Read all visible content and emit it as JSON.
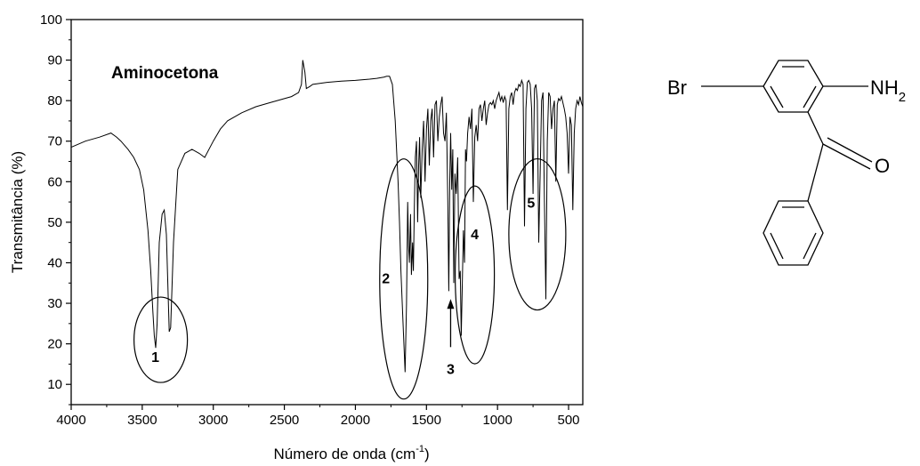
{
  "chart_data": {
    "type": "line",
    "title": "Aminocetona",
    "xlabel": "Número de onda (cm",
    "xlabel_sup": "-1",
    "xlabel_end": ")",
    "ylabel": "Transmitância (%)",
    "xlim": [
      4000,
      400
    ],
    "ylim": [
      5,
      100
    ],
    "x_ticks": [
      4000,
      3500,
      3000,
      2500,
      2000,
      1500,
      1000,
      500
    ],
    "x_tick_labels": [
      "4000",
      "3500",
      "3000",
      "2500",
      "2000",
      "1500",
      "1000",
      "500"
    ],
    "y_ticks": [
      10,
      20,
      30,
      40,
      50,
      60,
      70,
      80,
      90,
      100
    ],
    "y_tick_labels": [
      "10",
      "20",
      "30",
      "40",
      "50",
      "60",
      "70",
      "80",
      "90",
      "100"
    ],
    "grid": false,
    "series": [
      {
        "x": [
          4000,
          3900,
          3800,
          3720,
          3680,
          3650,
          3600,
          3560,
          3520,
          3490,
          3460,
          3440,
          3425,
          3415,
          3405,
          3395,
          3380,
          3360,
          3345,
          3330,
          3320,
          3310,
          3300,
          3280,
          3250,
          3200,
          3150,
          3100,
          3060,
          3000,
          2950,
          2900,
          2800,
          2700,
          2600,
          2500,
          2450,
          2400,
          2380,
          2370,
          2355,
          2345,
          2320,
          2300,
          2200,
          2100,
          2000,
          1900,
          1850,
          1800,
          1780,
          1760,
          1740,
          1720,
          1700,
          1690,
          1680,
          1665,
          1650,
          1640,
          1632,
          1626,
          1620,
          1612,
          1606,
          1598,
          1592,
          1585,
          1578,
          1570,
          1562,
          1555,
          1548,
          1540,
          1530,
          1520,
          1510,
          1500,
          1490,
          1480,
          1470,
          1460,
          1450,
          1440,
          1430,
          1420,
          1410,
          1400,
          1390,
          1380,
          1370,
          1360,
          1350,
          1343,
          1336,
          1330,
          1322,
          1315,
          1308,
          1300,
          1290,
          1280,
          1270,
          1262,
          1255,
          1248,
          1240,
          1232,
          1225,
          1218,
          1210,
          1200,
          1190,
          1180,
          1170,
          1160,
          1150,
          1140,
          1130,
          1120,
          1110,
          1100,
          1090,
          1080,
          1070,
          1060,
          1050,
          1040,
          1030,
          1020,
          1010,
          1000,
          990,
          980,
          970,
          960,
          950,
          940,
          930,
          920,
          910,
          900,
          890,
          880,
          870,
          860,
          850,
          840,
          830,
          820,
          810,
          800,
          790,
          780,
          770,
          760,
          750,
          740,
          730,
          720,
          710,
          700,
          690,
          680,
          670,
          660,
          650,
          640,
          630,
          620,
          610,
          600,
          590,
          580,
          570,
          560,
          550,
          540,
          530,
          520,
          510,
          500,
          490,
          480,
          470,
          460,
          450,
          440,
          430,
          420,
          410,
          400
        ],
        "y": [
          68.5,
          70,
          71,
          72,
          71,
          70,
          68,
          66,
          63,
          58,
          48,
          38,
          28,
          22,
          19,
          25,
          45,
          52,
          53,
          47,
          35,
          23,
          24,
          45,
          63,
          67,
          68,
          67,
          66,
          70,
          73,
          75,
          77,
          78.5,
          79.5,
          80.5,
          81,
          82,
          84,
          90,
          87,
          83,
          83.5,
          84,
          84.5,
          84.8,
          85,
          85.3,
          85.5,
          85.8,
          86,
          86,
          84,
          75,
          60,
          50,
          38,
          25,
          13,
          30,
          55,
          44,
          40,
          52,
          37,
          45,
          38,
          54,
          66,
          70,
          50,
          64,
          71,
          56,
          68,
          75,
          60,
          73,
          78,
          64,
          75,
          78,
          66,
          79,
          80,
          70,
          76,
          79,
          81,
          72,
          70,
          77,
          55,
          33,
          60,
          72,
          58,
          68,
          35,
          62,
          57,
          66,
          36,
          38,
          22,
          35,
          48,
          40,
          68,
          65,
          72,
          76,
          73,
          78,
          55,
          71,
          74,
          70,
          78,
          79,
          75,
          78,
          80,
          74,
          77,
          79,
          79.5,
          79,
          80,
          78,
          80,
          81,
          82,
          80,
          81,
          79.5,
          81,
          80,
          53,
          78,
          81,
          82,
          79,
          82,
          83,
          82.5,
          84,
          83.5,
          85,
          84,
          49,
          78,
          84.5,
          85,
          84,
          78,
          57,
          83,
          84,
          80,
          45,
          62,
          80,
          82,
          55,
          31,
          70,
          82,
          81,
          73,
          78,
          80,
          60,
          79,
          80.5,
          80,
          81,
          79.5,
          78,
          76,
          72,
          62,
          76,
          74,
          53,
          72,
          78,
          80,
          79,
          81,
          79.5,
          78.5
        ]
      }
    ],
    "annotations": [
      {
        "label": "1",
        "wavenumber": 3370,
        "transmittance": 21
      },
      {
        "label": "2",
        "wavenumber": 1660,
        "transmittance": 36
      },
      {
        "label": "3",
        "wavenumber": 1330,
        "transmittance": 17
      },
      {
        "label": "4",
        "wavenumber": 1160,
        "transmittance": 37
      },
      {
        "label": "5",
        "wavenumber": 720,
        "transmittance": 47
      }
    ]
  },
  "structure": {
    "substituent_br": "Br",
    "substituent_nh": "NH",
    "substituent_nh_sub": "2",
    "substituent_o": "O"
  }
}
